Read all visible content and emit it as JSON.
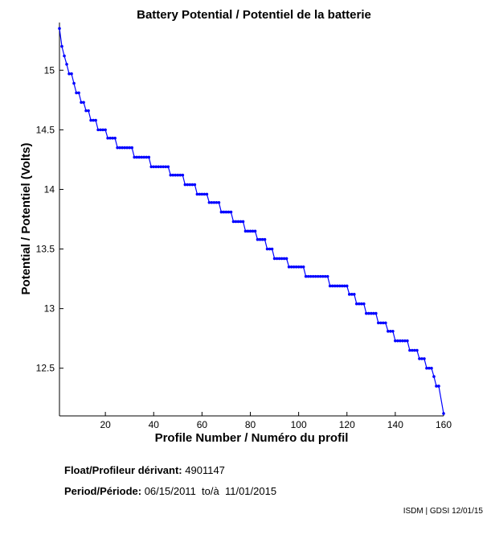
{
  "chart_data": {
    "type": "line",
    "title": "Battery Potential / Potentiel de la batterie",
    "xlabel": "Profile Number / Numéro du profil",
    "ylabel": "Potential / Potentiel (Volts)",
    "xlim": [
      1,
      160
    ],
    "ylim": [
      12.1,
      15.4
    ],
    "xticks": [
      20,
      40,
      60,
      80,
      100,
      120,
      140,
      160
    ],
    "yticks": [
      12.5,
      13,
      13.5,
      14,
      14.5,
      15
    ],
    "grid": false,
    "line_color": "#0000ff",
    "marker": "dot",
    "x": [
      1,
      2,
      3,
      4,
      5,
      6,
      7,
      8,
      9,
      10,
      11,
      12,
      13,
      14,
      15,
      16,
      17,
      18,
      19,
      20,
      21,
      22,
      23,
      24,
      25,
      26,
      27,
      28,
      29,
      30,
      31,
      32,
      33,
      34,
      35,
      36,
      37,
      38,
      39,
      40,
      41,
      42,
      43,
      44,
      45,
      46,
      47,
      48,
      49,
      50,
      51,
      52,
      53,
      54,
      55,
      56,
      57,
      58,
      59,
      60,
      61,
      62,
      63,
      64,
      65,
      66,
      67,
      68,
      69,
      70,
      71,
      72,
      73,
      74,
      75,
      76,
      77,
      78,
      79,
      80,
      81,
      82,
      83,
      84,
      85,
      86,
      87,
      88,
      89,
      90,
      91,
      92,
      93,
      94,
      95,
      96,
      97,
      98,
      99,
      100,
      101,
      102,
      103,
      104,
      105,
      106,
      107,
      108,
      109,
      110,
      111,
      112,
      113,
      114,
      115,
      116,
      117,
      118,
      119,
      120,
      121,
      122,
      123,
      124,
      125,
      126,
      127,
      128,
      129,
      130,
      131,
      132,
      133,
      134,
      135,
      136,
      137,
      138,
      139,
      140,
      141,
      142,
      143,
      144,
      145,
      146,
      147,
      148,
      149,
      150,
      151,
      152,
      153,
      154,
      155,
      156,
      157,
      158,
      160
    ],
    "y": [
      15.35,
      15.2,
      15.12,
      15.05,
      14.97,
      14.97,
      14.89,
      14.81,
      14.81,
      14.73,
      14.73,
      14.66,
      14.66,
      14.58,
      14.58,
      14.58,
      14.5,
      14.5,
      14.5,
      14.5,
      14.43,
      14.43,
      14.43,
      14.43,
      14.35,
      14.35,
      14.35,
      14.35,
      14.35,
      14.35,
      14.35,
      14.27,
      14.27,
      14.27,
      14.27,
      14.27,
      14.27,
      14.27,
      14.19,
      14.19,
      14.19,
      14.19,
      14.19,
      14.19,
      14.19,
      14.19,
      14.12,
      14.12,
      14.12,
      14.12,
      14.12,
      14.12,
      14.04,
      14.04,
      14.04,
      14.04,
      14.04,
      13.96,
      13.96,
      13.96,
      13.96,
      13.96,
      13.89,
      13.89,
      13.89,
      13.89,
      13.89,
      13.81,
      13.81,
      13.81,
      13.81,
      13.81,
      13.73,
      13.73,
      13.73,
      13.73,
      13.73,
      13.65,
      13.65,
      13.65,
      13.65,
      13.65,
      13.58,
      13.58,
      13.58,
      13.58,
      13.5,
      13.5,
      13.5,
      13.42,
      13.42,
      13.42,
      13.42,
      13.42,
      13.42,
      13.35,
      13.35,
      13.35,
      13.35,
      13.35,
      13.35,
      13.35,
      13.27,
      13.27,
      13.27,
      13.27,
      13.27,
      13.27,
      13.27,
      13.27,
      13.27,
      13.27,
      13.19,
      13.19,
      13.19,
      13.19,
      13.19,
      13.19,
      13.19,
      13.19,
      13.12,
      13.12,
      13.12,
      13.04,
      13.04,
      13.04,
      13.04,
      12.96,
      12.96,
      12.96,
      12.96,
      12.96,
      12.88,
      12.88,
      12.88,
      12.88,
      12.81,
      12.81,
      12.81,
      12.73,
      12.73,
      12.73,
      12.73,
      12.73,
      12.73,
      12.65,
      12.65,
      12.65,
      12.65,
      12.58,
      12.58,
      12.58,
      12.5,
      12.5,
      12.5,
      12.43,
      12.35,
      12.35,
      12.12
    ]
  },
  "info": {
    "float_label": "Float/Profileur dérivant:",
    "float_value": "4901147",
    "period_label": "Period/Période:",
    "period_start": "06/15/2011",
    "period_sep": "to/à",
    "period_end": "11/01/2015"
  },
  "footer": "ISDM | GDSI 12/01/15"
}
